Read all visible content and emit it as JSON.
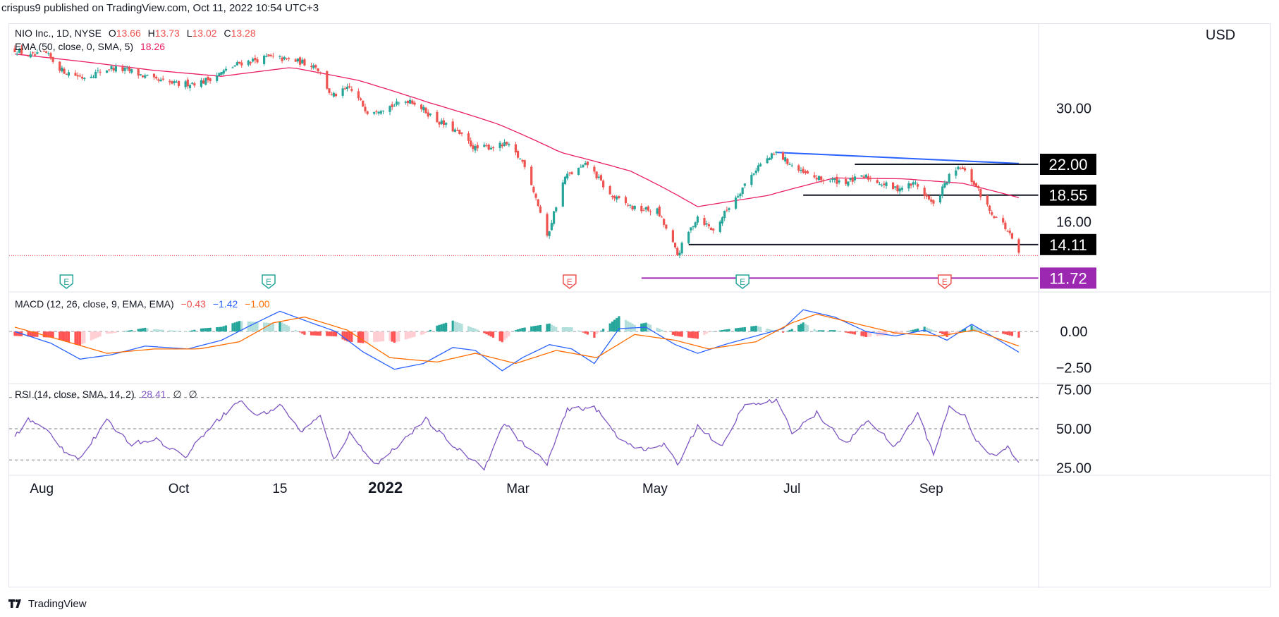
{
  "header": {
    "published": "crispus9 published on TradingView.com, Oct 11, 2022 10:54 UTC+3"
  },
  "footer": {
    "brand": "TradingView"
  },
  "colors": {
    "up": "#26a69a",
    "down": "#ef5350",
    "ema": "#e91e63",
    "macd": "#2962ff",
    "signal": "#ff6d00",
    "rsi": "#7e57c2",
    "trend": "#2962ff",
    "level": "#131722",
    "support_low": "#9c27b0",
    "last_price": "#ef5350"
  },
  "chart_data": [
    {
      "type": "candlestick",
      "symbol_legend": "NIO Inc., 1D, NYSE",
      "ohlc_legend": {
        "o_label": "O",
        "o": "13.66",
        "h_label": "H",
        "h": "13.73",
        "l_label": "L",
        "l": "13.02",
        "c_label": "C",
        "c": "13.28"
      },
      "ema_legend": {
        "label": "EMA (50, close, 0, SMA, 5)",
        "value": "18.26"
      },
      "currency": "USD",
      "y_scale": "log",
      "ylim": [
        11.2,
        46.0
      ],
      "y_ticks": [
        "30.00",
        "16.00"
      ],
      "x_ticks": [
        {
          "label": "Aug",
          "month": "2021-08",
          "bold": false
        },
        {
          "label": "Oct",
          "month": "2021-10",
          "bold": false
        },
        {
          "label": "15",
          "month": "2021-11-15",
          "bold": false
        },
        {
          "label": "2022",
          "month": "2022-01",
          "bold": true
        },
        {
          "label": "Mar",
          "month": "2022-03",
          "bold": false
        },
        {
          "label": "May",
          "month": "2022-05",
          "bold": false
        },
        {
          "label": "Jul",
          "month": "2022-07",
          "bold": false
        },
        {
          "label": "Sep",
          "month": "2022-09",
          "bold": false
        }
      ],
      "close_anchors": [
        [
          "2021-07-20",
          41.5
        ],
        [
          "2021-07-27",
          40.0
        ],
        [
          "2021-08-03",
          40.5
        ],
        [
          "2021-08-10",
          37.0
        ],
        [
          "2021-08-19",
          35.6
        ],
        [
          "2021-09-01",
          37.5
        ],
        [
          "2021-09-10",
          36.8
        ],
        [
          "2021-09-20",
          35.0
        ],
        [
          "2021-10-01",
          34.2
        ],
        [
          "2021-10-12",
          34.8
        ],
        [
          "2021-10-20",
          36.5
        ],
        [
          "2021-10-28",
          38.5
        ],
        [
          "2021-11-10",
          39.8
        ],
        [
          "2021-11-22",
          39.0
        ],
        [
          "2021-12-01",
          38.0
        ],
        [
          "2021-12-08",
          32.0
        ],
        [
          "2021-12-16",
          33.5
        ],
        [
          "2021-12-24",
          29.5
        ],
        [
          "2022-01-05",
          30.5
        ],
        [
          "2022-01-12",
          31.5
        ],
        [
          "2022-01-24",
          28.0
        ],
        [
          "2022-02-01",
          26.5
        ],
        [
          "2022-02-10",
          24.0
        ],
        [
          "2022-02-24",
          24.5
        ],
        [
          "2022-03-04",
          22.0
        ],
        [
          "2022-03-14",
          14.6
        ],
        [
          "2022-03-22",
          20.5
        ],
        [
          "2022-04-01",
          22.0
        ],
        [
          "2022-04-11",
          18.5
        ],
        [
          "2022-04-22",
          17.2
        ],
        [
          "2022-05-02",
          17.0
        ],
        [
          "2022-05-11",
          13.3
        ],
        [
          "2022-05-20",
          16.5
        ],
        [
          "2022-05-27",
          15.2
        ],
        [
          "2022-06-08",
          19.0
        ],
        [
          "2022-06-16",
          21.8
        ],
        [
          "2022-06-24",
          23.4
        ],
        [
          "2022-07-05",
          21.0
        ],
        [
          "2022-07-14",
          20.2
        ],
        [
          "2022-07-25",
          20.0
        ],
        [
          "2022-08-03",
          20.5
        ],
        [
          "2022-08-16",
          19.2
        ],
        [
          "2022-08-25",
          19.8
        ],
        [
          "2022-09-02",
          17.5
        ],
        [
          "2022-09-09",
          20.5
        ],
        [
          "2022-09-14",
          21.6
        ],
        [
          "2022-09-20",
          19.8
        ],
        [
          "2022-09-27",
          17.0
        ],
        [
          "2022-10-03",
          15.8
        ],
        [
          "2022-10-07",
          14.5
        ],
        [
          "2022-10-10",
          13.28
        ]
      ],
      "ema_anchors": [
        [
          "2021-07-20",
          40.5
        ],
        [
          "2021-08-20",
          38.8
        ],
        [
          "2021-09-20",
          37.0
        ],
        [
          "2021-10-20",
          35.8
        ],
        [
          "2021-11-20",
          37.6
        ],
        [
          "2021-12-20",
          35.0
        ],
        [
          "2022-01-20",
          31.0
        ],
        [
          "2022-02-20",
          27.5
        ],
        [
          "2022-03-20",
          23.5
        ],
        [
          "2022-04-20",
          21.2
        ],
        [
          "2022-05-20",
          17.4
        ],
        [
          "2022-06-20",
          18.5
        ],
        [
          "2022-07-20",
          20.4
        ],
        [
          "2022-08-20",
          20.3
        ],
        [
          "2022-09-15",
          19.8
        ],
        [
          "2022-10-10",
          18.3
        ]
      ],
      "price_labels": [
        {
          "text": "22.00",
          "value": 22.0,
          "style": "dark"
        },
        {
          "text": "18.55",
          "value": 18.55,
          "style": "dark"
        },
        {
          "text": "14.11",
          "value": 14.11,
          "style": "dark"
        },
        {
          "text": "11.72",
          "value": 11.72,
          "style": "purple"
        }
      ],
      "lines": [
        {
          "type": "trend",
          "from": [
            "2022-06-24",
            23.5
          ],
          "to": [
            "2022-10-10",
            22.1
          ]
        },
        {
          "type": "level",
          "value": 22.0,
          "from": "2022-07-29",
          "to": "2022-10-10"
        },
        {
          "type": "level",
          "value": 18.55,
          "from": "2022-07-06",
          "to": "2022-10-10"
        },
        {
          "type": "level",
          "value": 14.11,
          "from": "2022-05-16",
          "to": "2022-10-10"
        },
        {
          "type": "support",
          "value": 11.72,
          "from": "2022-04-25",
          "to": "2022-10-10"
        },
        {
          "type": "last",
          "value": 13.28
        }
      ],
      "earnings_markers": [
        {
          "date": "2021-08-12",
          "label": "E",
          "kind": "beat"
        },
        {
          "date": "2021-11-10",
          "label": "E",
          "kind": "beat"
        },
        {
          "date": "2022-03-24",
          "label": "E",
          "kind": "miss"
        },
        {
          "date": "2022-06-09",
          "label": "E",
          "kind": "beat"
        },
        {
          "date": "2022-09-07",
          "label": "E",
          "kind": "miss"
        }
      ]
    },
    {
      "type": "macd",
      "legend": {
        "label": "MACD (12, 26, close, 9, EMA, EMA)",
        "hist": "−0.43",
        "macd": "−1.42",
        "signal": "−1.00"
      },
      "ylim": [
        -3.1,
        2.0
      ],
      "y_ticks": [
        {
          "text": "0.00",
          "value": 0
        },
        {
          "text": "−2.50",
          "value": -2.5
        }
      ],
      "macd_anchors": [
        [
          "2021-07-20",
          0.0
        ],
        [
          "2021-08-05",
          -0.8
        ],
        [
          "2021-08-18",
          -1.9
        ],
        [
          "2021-09-01",
          -1.6
        ],
        [
          "2021-09-16",
          -1.0
        ],
        [
          "2021-10-05",
          -1.2
        ],
        [
          "2021-10-20",
          -0.6
        ],
        [
          "2021-11-03",
          0.5
        ],
        [
          "2021-11-15",
          1.4
        ],
        [
          "2021-11-29",
          0.6
        ],
        [
          "2021-12-10",
          0.0
        ],
        [
          "2021-12-22",
          -1.4
        ],
        [
          "2022-01-05",
          -2.6
        ],
        [
          "2022-01-18",
          -2.2
        ],
        [
          "2022-01-31",
          -1.1
        ],
        [
          "2022-02-10",
          -1.3
        ],
        [
          "2022-02-22",
          -2.7
        ],
        [
          "2022-03-03",
          -1.8
        ],
        [
          "2022-03-15",
          -0.9
        ],
        [
          "2022-03-25",
          -1.2
        ],
        [
          "2022-04-04",
          -2.2
        ],
        [
          "2022-04-15",
          0.2
        ],
        [
          "2022-04-27",
          0.3
        ],
        [
          "2022-05-10",
          -0.9
        ],
        [
          "2022-05-20",
          -1.5
        ],
        [
          "2022-06-01",
          -0.9
        ],
        [
          "2022-06-15",
          -0.3
        ],
        [
          "2022-06-27",
          0.2
        ],
        [
          "2022-07-06",
          1.5
        ],
        [
          "2022-07-20",
          1.0
        ],
        [
          "2022-08-03",
          0.0
        ],
        [
          "2022-08-16",
          -0.3
        ],
        [
          "2022-08-29",
          0.1
        ],
        [
          "2022-09-08",
          -0.6
        ],
        [
          "2022-09-19",
          0.5
        ],
        [
          "2022-09-29",
          -0.4
        ],
        [
          "2022-10-10",
          -1.42
        ]
      ],
      "signal_anchors": [
        [
          "2021-07-20",
          0.3
        ],
        [
          "2021-08-10",
          -0.6
        ],
        [
          "2021-08-30",
          -1.5
        ],
        [
          "2021-09-20",
          -1.2
        ],
        [
          "2021-10-10",
          -1.2
        ],
        [
          "2021-10-28",
          -0.7
        ],
        [
          "2021-11-12",
          0.6
        ],
        [
          "2021-11-26",
          1.0
        ],
        [
          "2021-12-15",
          0.1
        ],
        [
          "2022-01-03",
          -1.8
        ],
        [
          "2022-01-24",
          -2.1
        ],
        [
          "2022-02-10",
          -1.5
        ],
        [
          "2022-02-28",
          -2.2
        ],
        [
          "2022-03-18",
          -1.3
        ],
        [
          "2022-04-05",
          -1.8
        ],
        [
          "2022-04-22",
          -0.2
        ],
        [
          "2022-05-10",
          -0.6
        ],
        [
          "2022-05-25",
          -1.2
        ],
        [
          "2022-06-15",
          -0.7
        ],
        [
          "2022-07-01",
          0.6
        ],
        [
          "2022-07-12",
          1.2
        ],
        [
          "2022-07-28",
          0.6
        ],
        [
          "2022-08-16",
          -0.1
        ],
        [
          "2022-09-05",
          -0.3
        ],
        [
          "2022-09-20",
          0.1
        ],
        [
          "2022-10-10",
          -1.0
        ]
      ]
    },
    {
      "type": "rsi",
      "legend": {
        "label": "RSI (14, close, SMA, 14, 2)",
        "value": "28.41",
        "extra1": "∅",
        "extra2": "∅"
      },
      "ylim": [
        22,
        78
      ],
      "y_ticks": [
        {
          "text": "75.00",
          "value": 75
        },
        {
          "text": "50.00",
          "value": 50
        },
        {
          "text": "25.00",
          "value": 25
        }
      ],
      "bands": [
        70,
        50,
        30
      ],
      "rsi_anchors": [
        [
          "2021-07-20",
          45
        ],
        [
          "2021-07-26",
          56
        ],
        [
          "2021-08-04",
          48
        ],
        [
          "2021-08-11",
          36
        ],
        [
          "2021-08-18",
          31
        ],
        [
          "2021-08-30",
          55
        ],
        [
          "2021-09-10",
          40
        ],
        [
          "2021-09-20",
          44
        ],
        [
          "2021-10-04",
          32
        ],
        [
          "2021-10-14",
          50
        ],
        [
          "2021-10-28",
          68
        ],
        [
          "2021-11-05",
          58
        ],
        [
          "2021-11-16",
          65
        ],
        [
          "2021-11-24",
          48
        ],
        [
          "2021-12-03",
          58
        ],
        [
          "2021-12-09",
          30
        ],
        [
          "2021-12-16",
          47
        ],
        [
          "2021-12-28",
          27
        ],
        [
          "2022-01-10",
          44
        ],
        [
          "2022-01-19",
          56
        ],
        [
          "2022-02-01",
          38
        ],
        [
          "2022-02-14",
          25
        ],
        [
          "2022-02-23",
          54
        ],
        [
          "2022-03-02",
          42
        ],
        [
          "2022-03-14",
          28
        ],
        [
          "2022-03-23",
          62
        ],
        [
          "2022-04-04",
          64
        ],
        [
          "2022-04-15",
          44
        ],
        [
          "2022-04-26",
          36
        ],
        [
          "2022-05-05",
          40
        ],
        [
          "2022-05-11",
          27
        ],
        [
          "2022-05-20",
          52
        ],
        [
          "2022-05-31",
          38
        ],
        [
          "2022-06-09",
          64
        ],
        [
          "2022-06-16",
          66
        ],
        [
          "2022-06-24",
          68
        ],
        [
          "2022-07-01",
          48
        ],
        [
          "2022-07-12",
          60
        ],
        [
          "2022-07-25",
          40
        ],
        [
          "2022-08-04",
          56
        ],
        [
          "2022-08-16",
          38
        ],
        [
          "2022-08-26",
          60
        ],
        [
          "2022-09-02",
          34
        ],
        [
          "2022-09-09",
          64
        ],
        [
          "2022-09-16",
          58
        ],
        [
          "2022-09-21",
          43
        ],
        [
          "2022-09-29",
          32
        ],
        [
          "2022-10-05",
          38
        ],
        [
          "2022-10-10",
          28.4
        ]
      ]
    }
  ]
}
